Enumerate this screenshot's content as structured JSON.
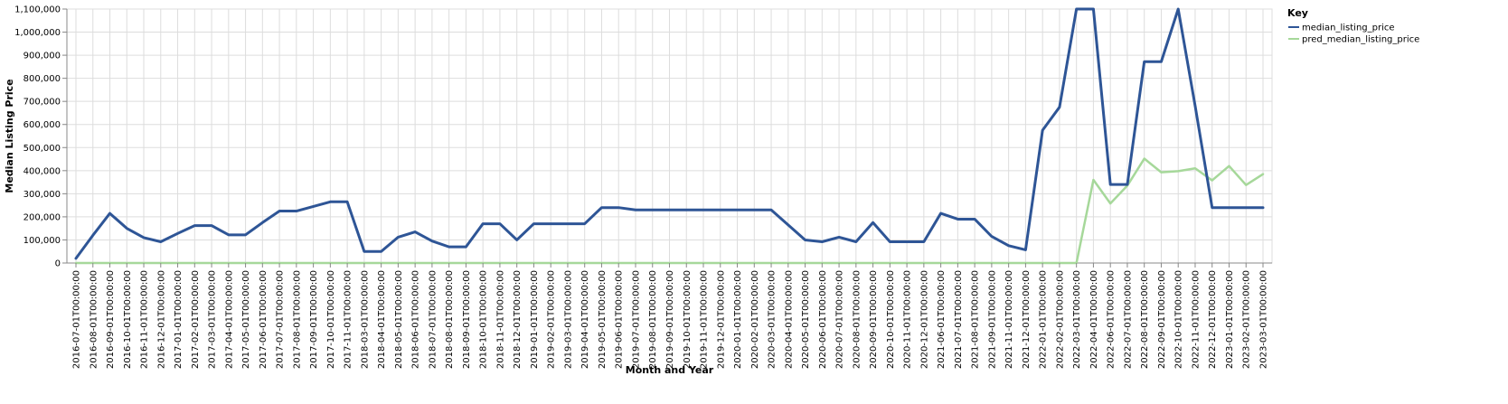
{
  "chart_data": {
    "type": "line",
    "xlabel": "Month and Year",
    "ylabel": "Median Listing Price",
    "ylim": [
      0,
      1100000
    ],
    "yticks": [
      0,
      100000,
      200000,
      300000,
      400000,
      500000,
      600000,
      700000,
      800000,
      900000,
      1000000,
      1100000
    ],
    "ytick_labels": [
      "0",
      "100,000",
      "200,000",
      "300,000",
      "400,000",
      "500,000",
      "600,000",
      "700,000",
      "800,000",
      "900,000",
      "1,000,000",
      "1,100,000"
    ],
    "grid": true,
    "legend": {
      "title": "Key",
      "placement": "right"
    },
    "x": [
      "2016-07-01T00:00:00",
      "2016-08-01T00:00:00",
      "2016-09-01T00:00:00",
      "2016-10-01T00:00:00",
      "2016-11-01T00:00:00",
      "2016-12-01T00:00:00",
      "2017-01-01T00:00:00",
      "2017-02-01T00:00:00",
      "2017-03-01T00:00:00",
      "2017-04-01T00:00:00",
      "2017-05-01T00:00:00",
      "2017-06-01T00:00:00",
      "2017-07-01T00:00:00",
      "2017-08-01T00:00:00",
      "2017-09-01T00:00:00",
      "2017-10-01T00:00:00",
      "2017-11-01T00:00:00",
      "2018-03-01T00:00:00",
      "2018-04-01T00:00:00",
      "2018-05-01T00:00:00",
      "2018-06-01T00:00:00",
      "2018-07-01T00:00:00",
      "2018-08-01T00:00:00",
      "2018-09-01T00:00:00",
      "2018-10-01T00:00:00",
      "2018-11-01T00:00:00",
      "2018-12-01T00:00:00",
      "2019-01-01T00:00:00",
      "2019-02-01T00:00:00",
      "2019-03-01T00:00:00",
      "2019-04-01T00:00:00",
      "2019-05-01T00:00:00",
      "2019-06-01T00:00:00",
      "2019-07-01T00:00:00",
      "2019-08-01T00:00:00",
      "2019-09-01T00:00:00",
      "2019-10-01T00:00:00",
      "2019-11-01T00:00:00",
      "2019-12-01T00:00:00",
      "2020-01-01T00:00:00",
      "2020-02-01T00:00:00",
      "2020-03-01T00:00:00",
      "2020-04-01T00:00:00",
      "2020-05-01T00:00:00",
      "2020-06-01T00:00:00",
      "2020-07-01T00:00:00",
      "2020-08-01T00:00:00",
      "2020-09-01T00:00:00",
      "2020-10-01T00:00:00",
      "2020-11-01T00:00:00",
      "2020-12-01T00:00:00",
      "2021-06-01T00:00:00",
      "2021-07-01T00:00:00",
      "2021-08-01T00:00:00",
      "2021-09-01T00:00:00",
      "2021-11-01T00:00:00",
      "2021-12-01T00:00:00",
      "2022-01-01T00:00:00",
      "2022-02-01T00:00:00",
      "2022-03-01T00:00:00",
      "2022-04-01T00:00:00",
      "2022-06-01T00:00:00",
      "2022-07-01T00:00:00",
      "2022-08-01T00:00:00",
      "2022-09-01T00:00:00",
      "2022-10-01T00:00:00",
      "2022-11-01T00:00:00",
      "2022-12-01T00:00:00",
      "2023-01-01T00:00:00",
      "2023-02-01T00:00:00",
      "2023-03-01T00:00:00"
    ],
    "series": [
      {
        "name": "median_listing_price",
        "color": "#2e5596",
        "values": [
          20000,
          120000,
          215000,
          150000,
          110000,
          92000,
          128000,
          162000,
          162000,
          122000,
          122000,
          175000,
          225000,
          225000,
          245000,
          265000,
          265000,
          50000,
          50000,
          112000,
          135000,
          95000,
          70000,
          70000,
          170000,
          170000,
          100000,
          170000,
          170000,
          170000,
          170000,
          240000,
          240000,
          230000,
          230000,
          230000,
          230000,
          230000,
          230000,
          230000,
          230000,
          230000,
          165000,
          100000,
          92000,
          112000,
          92000,
          175000,
          92000,
          92000,
          92000,
          215000,
          190000,
          190000,
          115000,
          75000,
          57000,
          575000,
          675000,
          1100000,
          1100000,
          340000,
          340000,
          872000,
          872000,
          1100000,
          680000,
          240000,
          240000,
          240000,
          240000
        ]
      },
      {
        "name": "pred_median_listing_price",
        "color": "#a6d89a",
        "values": [
          0,
          0,
          0,
          0,
          0,
          0,
          0,
          0,
          0,
          0,
          0,
          0,
          0,
          0,
          0,
          0,
          0,
          0,
          0,
          0,
          0,
          0,
          0,
          0,
          0,
          0,
          0,
          0,
          0,
          0,
          0,
          0,
          0,
          0,
          0,
          0,
          0,
          0,
          0,
          0,
          0,
          0,
          0,
          0,
          0,
          0,
          0,
          0,
          0,
          0,
          0,
          0,
          0,
          0,
          0,
          0,
          0,
          0,
          0,
          0,
          360000,
          258000,
          335000,
          452000,
          393000,
          398000,
          410000,
          358000,
          420000,
          338000,
          385000
        ]
      }
    ]
  }
}
